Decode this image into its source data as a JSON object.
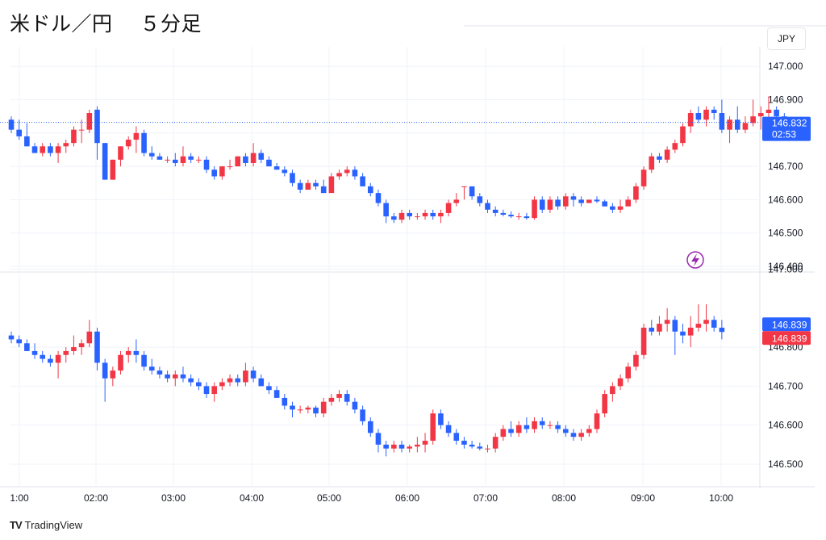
{
  "header": {
    "title": "米ドル／円",
    "timeframe": "５分足",
    "currency": "JPY"
  },
  "brand": {
    "logo": "TV",
    "name": "TradingView"
  },
  "colors": {
    "up": "#f23645",
    "down": "#2962ff",
    "grid": "#f0f3fa",
    "text": "#131722"
  },
  "chart_data": [
    {
      "type": "candlestick",
      "panel": "top",
      "x_ticks": [
        "1:00",
        "02:00",
        "03:00",
        "04:00",
        "05:00",
        "06:00",
        "07:00",
        "08:00",
        "09:00",
        "10:00"
      ],
      "y_ticks": [
        "146.400",
        "146.500",
        "146.600",
        "146.700",
        "146.800",
        "146.900",
        "147.000"
      ],
      "ylim": [
        146.38,
        147.06
      ],
      "last_price": {
        "value": 146.832,
        "label": "146.832",
        "countdown": "02:53"
      },
      "candles": [
        [
          146.84,
          146.85,
          146.8,
          146.81
        ],
        [
          146.81,
          146.84,
          146.78,
          146.79
        ],
        [
          146.79,
          146.83,
          146.76,
          146.76
        ],
        [
          146.76,
          146.77,
          146.74,
          146.74
        ],
        [
          146.74,
          146.77,
          146.73,
          146.76
        ],
        [
          146.76,
          146.77,
          146.73,
          146.74
        ],
        [
          146.74,
          146.77,
          146.71,
          146.76
        ],
        [
          146.76,
          146.78,
          146.74,
          146.77
        ],
        [
          146.77,
          146.82,
          146.76,
          146.81
        ],
        [
          146.81,
          146.84,
          146.77,
          146.81
        ],
        [
          146.81,
          146.87,
          146.8,
          146.86
        ],
        [
          146.87,
          146.88,
          146.72,
          146.77
        ],
        [
          146.77,
          146.77,
          146.66,
          146.66
        ],
        [
          146.66,
          146.72,
          146.66,
          146.72
        ],
        [
          146.72,
          146.76,
          146.7,
          146.76
        ],
        [
          146.76,
          146.79,
          146.75,
          146.78
        ],
        [
          146.78,
          146.82,
          146.74,
          146.8
        ],
        [
          146.8,
          146.81,
          146.73,
          146.74
        ],
        [
          146.74,
          146.76,
          146.72,
          146.73
        ],
        [
          146.73,
          146.74,
          146.72,
          146.72
        ],
        [
          146.72,
          146.73,
          146.71,
          146.72
        ],
        [
          146.72,
          146.74,
          146.7,
          146.71
        ],
        [
          146.71,
          146.76,
          146.7,
          146.73
        ],
        [
          146.73,
          146.74,
          146.71,
          146.72
        ],
        [
          146.72,
          146.73,
          146.71,
          146.72
        ],
        [
          146.72,
          146.73,
          146.68,
          146.69
        ],
        [
          146.69,
          146.7,
          146.66,
          146.67
        ],
        [
          146.67,
          146.7,
          146.66,
          146.7
        ],
        [
          146.7,
          146.72,
          146.69,
          146.7
        ],
        [
          146.7,
          146.73,
          146.7,
          146.73
        ],
        [
          146.73,
          146.74,
          146.7,
          146.71
        ],
        [
          146.71,
          146.77,
          146.7,
          146.74
        ],
        [
          146.74,
          146.75,
          146.71,
          146.72
        ],
        [
          146.72,
          146.73,
          146.7,
          146.7
        ],
        [
          146.7,
          146.71,
          146.69,
          146.69
        ],
        [
          146.69,
          146.7,
          146.67,
          146.68
        ],
        [
          146.68,
          146.69,
          146.64,
          146.65
        ],
        [
          146.65,
          146.66,
          146.62,
          146.63
        ],
        [
          146.63,
          146.66,
          146.63,
          146.65
        ],
        [
          146.65,
          146.66,
          146.63,
          146.64
        ],
        [
          146.64,
          146.66,
          146.62,
          146.62
        ],
        [
          146.62,
          146.68,
          146.62,
          146.67
        ],
        [
          146.67,
          146.69,
          146.66,
          146.68
        ],
        [
          146.68,
          146.7,
          146.67,
          146.69
        ],
        [
          146.69,
          146.7,
          146.66,
          146.67
        ],
        [
          146.67,
          146.68,
          146.64,
          146.64
        ],
        [
          146.64,
          146.65,
          146.61,
          146.62
        ],
        [
          146.62,
          146.63,
          146.58,
          146.59
        ],
        [
          146.59,
          146.6,
          146.53,
          146.55
        ],
        [
          146.55,
          146.56,
          146.53,
          146.54
        ],
        [
          146.54,
          146.57,
          146.53,
          146.56
        ],
        [
          146.56,
          146.57,
          146.54,
          146.55
        ],
        [
          146.55,
          146.56,
          146.54,
          146.55
        ],
        [
          146.55,
          146.57,
          146.54,
          146.56
        ],
        [
          146.56,
          146.57,
          146.54,
          146.55
        ],
        [
          146.55,
          146.57,
          146.53,
          146.56
        ],
        [
          146.56,
          146.6,
          146.55,
          146.59
        ],
        [
          146.59,
          146.62,
          146.58,
          146.6
        ],
        [
          146.64,
          146.64,
          146.6,
          146.64
        ],
        [
          146.64,
          146.64,
          146.6,
          146.61
        ],
        [
          146.61,
          146.62,
          146.58,
          146.59
        ],
        [
          146.59,
          146.6,
          146.56,
          146.57
        ],
        [
          146.57,
          146.58,
          146.55,
          146.56
        ],
        [
          146.56,
          146.57,
          146.55,
          146.555
        ],
        [
          146.555,
          146.565,
          146.545,
          146.55
        ],
        [
          146.55,
          146.56,
          146.54,
          146.55
        ],
        [
          146.55,
          146.56,
          146.54,
          146.545
        ],
        [
          146.545,
          146.61,
          146.54,
          146.6
        ],
        [
          146.6,
          146.61,
          146.56,
          146.57
        ],
        [
          146.57,
          146.61,
          146.56,
          146.6
        ],
        [
          146.6,
          146.61,
          146.57,
          146.58
        ],
        [
          146.58,
          146.62,
          146.57,
          146.61
        ],
        [
          146.61,
          146.62,
          146.58,
          146.6
        ],
        [
          146.6,
          146.61,
          146.58,
          146.59
        ],
        [
          146.59,
          146.6,
          146.59,
          146.6
        ],
        [
          146.6,
          146.61,
          146.59,
          146.595
        ],
        [
          146.595,
          146.6,
          146.58,
          146.58
        ],
        [
          146.58,
          146.59,
          146.56,
          146.57
        ],
        [
          146.57,
          146.6,
          146.56,
          146.58
        ],
        [
          146.58,
          146.61,
          146.58,
          146.6
        ],
        [
          146.6,
          146.65,
          146.59,
          146.64
        ],
        [
          146.64,
          146.7,
          146.63,
          146.69
        ],
        [
          146.69,
          146.74,
          146.68,
          146.73
        ],
        [
          146.73,
          146.74,
          146.71,
          146.72
        ],
        [
          146.72,
          146.76,
          146.71,
          146.75
        ],
        [
          146.75,
          146.78,
          146.74,
          146.77
        ],
        [
          146.77,
          146.83,
          146.76,
          146.82
        ],
        [
          146.82,
          146.87,
          146.8,
          146.86
        ],
        [
          146.86,
          146.88,
          146.83,
          146.84
        ],
        [
          146.84,
          146.88,
          146.82,
          146.87
        ],
        [
          146.87,
          146.88,
          146.84,
          146.86
        ],
        [
          146.86,
          146.9,
          146.8,
          146.81
        ],
        [
          146.81,
          146.85,
          146.77,
          146.84
        ],
        [
          146.84,
          146.88,
          146.8,
          146.81
        ],
        [
          146.81,
          146.85,
          146.8,
          146.83
        ],
        [
          146.83,
          146.9,
          146.82,
          146.85
        ],
        [
          146.85,
          146.88,
          146.81,
          146.86
        ],
        [
          146.86,
          146.91,
          146.83,
          146.87
        ],
        [
          146.87,
          146.88,
          146.83,
          146.85
        ],
        [
          146.85,
          146.86,
          146.82,
          146.832
        ]
      ]
    },
    {
      "type": "candlestick",
      "panel": "bottom",
      "y_ticks": [
        "146.500",
        "146.600",
        "146.700",
        "146.800",
        "147.000"
      ],
      "ylim": [
        146.46,
        147.04
      ],
      "last_price": {
        "value": 146.839,
        "label_a": "146.839",
        "label_b": "146.839"
      },
      "candles": [
        [
          146.83,
          146.84,
          146.81,
          146.82
        ],
        [
          146.82,
          146.83,
          146.8,
          146.81
        ],
        [
          146.81,
          146.82,
          146.79,
          146.79
        ],
        [
          146.79,
          146.81,
          146.77,
          146.78
        ],
        [
          146.78,
          146.79,
          146.76,
          146.77
        ],
        [
          146.77,
          146.78,
          146.75,
          146.76
        ],
        [
          146.76,
          146.79,
          146.72,
          146.78
        ],
        [
          146.78,
          146.8,
          146.76,
          146.79
        ],
        [
          146.79,
          146.83,
          146.78,
          146.8
        ],
        [
          146.8,
          146.82,
          146.78,
          146.81
        ],
        [
          146.81,
          146.87,
          146.8,
          146.84
        ],
        [
          146.84,
          146.85,
          146.74,
          146.76
        ],
        [
          146.76,
          146.77,
          146.66,
          146.72
        ],
        [
          146.72,
          146.75,
          146.7,
          146.74
        ],
        [
          146.74,
          146.79,
          146.73,
          146.78
        ],
        [
          146.78,
          146.8,
          146.76,
          146.79
        ],
        [
          146.79,
          146.82,
          146.76,
          146.78
        ],
        [
          146.78,
          146.79,
          146.74,
          146.75
        ],
        [
          146.75,
          146.77,
          146.73,
          146.74
        ],
        [
          146.74,
          146.75,
          146.72,
          146.73
        ],
        [
          146.73,
          146.74,
          146.71,
          146.72
        ],
        [
          146.72,
          146.74,
          146.7,
          146.73
        ],
        [
          146.73,
          146.75,
          146.71,
          146.72
        ],
        [
          146.72,
          146.73,
          146.7,
          146.71
        ],
        [
          146.71,
          146.72,
          146.69,
          146.7
        ],
        [
          146.7,
          146.71,
          146.67,
          146.68
        ],
        [
          146.68,
          146.71,
          146.66,
          146.7
        ],
        [
          146.7,
          146.72,
          146.69,
          146.71
        ],
        [
          146.71,
          146.73,
          146.7,
          146.72
        ],
        [
          146.72,
          146.73,
          146.7,
          146.71
        ],
        [
          146.71,
          146.76,
          146.7,
          146.74
        ],
        [
          146.74,
          146.75,
          146.71,
          146.72
        ],
        [
          146.72,
          146.73,
          146.7,
          146.7
        ],
        [
          146.7,
          146.71,
          146.68,
          146.69
        ],
        [
          146.69,
          146.7,
          146.67,
          146.67
        ],
        [
          146.67,
          146.68,
          146.64,
          146.65
        ],
        [
          146.65,
          146.66,
          146.62,
          146.64
        ],
        [
          146.64,
          146.65,
          146.63,
          146.64
        ],
        [
          146.64,
          146.65,
          146.63,
          146.645
        ],
        [
          146.645,
          146.65,
          146.62,
          146.63
        ],
        [
          146.63,
          146.67,
          146.62,
          146.66
        ],
        [
          146.66,
          146.68,
          146.65,
          146.67
        ],
        [
          146.67,
          146.69,
          146.66,
          146.68
        ],
        [
          146.68,
          146.69,
          146.65,
          146.66
        ],
        [
          146.66,
          146.67,
          146.63,
          146.64
        ],
        [
          146.64,
          146.65,
          146.6,
          146.61
        ],
        [
          146.61,
          146.62,
          146.57,
          146.58
        ],
        [
          146.58,
          146.59,
          146.53,
          146.55
        ],
        [
          146.55,
          146.56,
          146.52,
          146.54
        ],
        [
          146.54,
          146.56,
          146.53,
          146.55
        ],
        [
          146.55,
          146.56,
          146.53,
          146.54
        ],
        [
          146.54,
          146.55,
          146.53,
          146.545
        ],
        [
          146.545,
          146.57,
          146.53,
          146.55
        ],
        [
          146.55,
          146.58,
          146.53,
          146.56
        ],
        [
          146.56,
          146.64,
          146.55,
          146.63
        ],
        [
          146.63,
          146.64,
          146.59,
          146.6
        ],
        [
          146.6,
          146.61,
          146.57,
          146.58
        ],
        [
          146.58,
          146.59,
          146.55,
          146.56
        ],
        [
          146.56,
          146.57,
          146.54,
          146.55
        ],
        [
          146.55,
          146.56,
          146.54,
          146.545
        ],
        [
          146.545,
          146.555,
          146.535,
          146.54
        ],
        [
          146.54,
          146.55,
          146.53,
          146.54
        ],
        [
          146.54,
          146.58,
          146.53,
          146.57
        ],
        [
          146.57,
          146.6,
          146.56,
          146.59
        ],
        [
          146.59,
          146.61,
          146.57,
          146.58
        ],
        [
          146.58,
          146.61,
          146.57,
          146.6
        ],
        [
          146.6,
          146.62,
          146.58,
          146.59
        ],
        [
          146.59,
          146.62,
          146.58,
          146.61
        ],
        [
          146.61,
          146.62,
          146.59,
          146.6
        ],
        [
          146.6,
          146.61,
          146.59,
          146.6
        ],
        [
          146.6,
          146.61,
          146.58,
          146.59
        ],
        [
          146.59,
          146.6,
          146.57,
          146.58
        ],
        [
          146.58,
          146.59,
          146.56,
          146.57
        ],
        [
          146.57,
          146.59,
          146.56,
          146.58
        ],
        [
          146.58,
          146.6,
          146.57,
          146.59
        ],
        [
          146.59,
          146.64,
          146.58,
          146.63
        ],
        [
          146.63,
          146.69,
          146.62,
          146.68
        ],
        [
          146.68,
          146.71,
          146.66,
          146.7
        ],
        [
          146.7,
          146.73,
          146.69,
          146.72
        ],
        [
          146.72,
          146.76,
          146.71,
          146.75
        ],
        [
          146.75,
          146.79,
          146.74,
          146.78
        ],
        [
          146.78,
          146.86,
          146.77,
          146.85
        ],
        [
          146.85,
          146.87,
          146.83,
          146.84
        ],
        [
          146.84,
          146.88,
          146.83,
          146.86
        ],
        [
          146.86,
          146.9,
          146.84,
          146.87
        ],
        [
          146.87,
          146.88,
          146.78,
          146.84
        ],
        [
          146.84,
          146.86,
          146.81,
          146.83
        ],
        [
          146.83,
          146.88,
          146.8,
          146.85
        ],
        [
          146.85,
          146.91,
          146.84,
          146.86
        ],
        [
          146.86,
          146.91,
          146.84,
          146.87
        ],
        [
          146.87,
          146.88,
          146.84,
          146.85
        ],
        [
          146.85,
          146.87,
          146.82,
          146.839
        ]
      ]
    }
  ]
}
